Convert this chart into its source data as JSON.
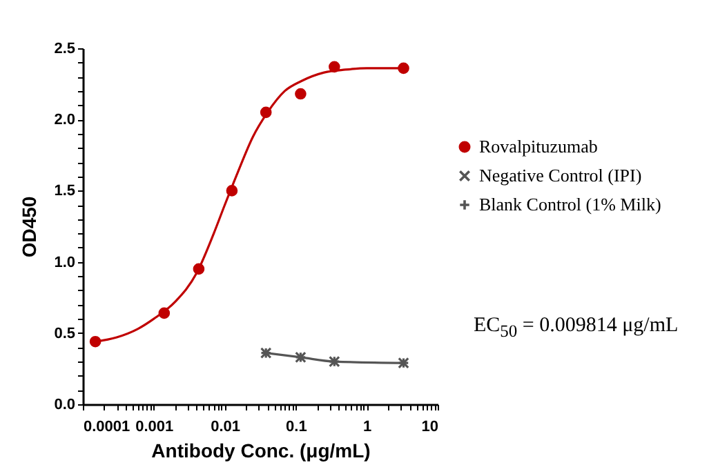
{
  "chart_data": {
    "type": "scatter",
    "xlabel": "Antibody Conc. (μg/mL)",
    "ylabel": "OD450",
    "log": "x",
    "legend": "right",
    "grid": false,
    "xlim": [
      0.0001,
      10
    ],
    "ylim": [
      0,
      2.5
    ],
    "xticks": [
      0.0001,
      {
        "value": 0.0002,
        "label": null
      },
      {
        "value": 0.0003,
        "label": null
      },
      {
        "value": 0.0004,
        "label": null
      },
      {
        "value": 0.0005,
        "label": null
      },
      {
        "value": 0.0006,
        "label": null
      },
      {
        "value": 0.0007,
        "label": null
      },
      {
        "value": 0.0008,
        "label": null
      },
      {
        "value": 0.0009,
        "label": null
      },
      0.001,
      {
        "value": 0.002,
        "label": null
      },
      {
        "value": 0.003,
        "label": null
      },
      {
        "value": 0.004,
        "label": null
      },
      {
        "value": 0.005,
        "label": null
      },
      {
        "value": 0.006,
        "label": null
      },
      {
        "value": 0.007,
        "label": null
      },
      {
        "value": 0.008,
        "label": null
      },
      {
        "value": 0.009,
        "label": null
      },
      0.01,
      {
        "value": 0.02,
        "label": null
      },
      {
        "value": 0.03,
        "label": null
      },
      {
        "value": 0.04,
        "label": null
      },
      {
        "value": 0.05,
        "label": null
      },
      {
        "value": 0.06,
        "label": null
      },
      {
        "value": 0.07,
        "label": null
      },
      {
        "value": 0.08,
        "label": null
      },
      {
        "value": 0.09,
        "label": null
      },
      0.1,
      {
        "value": 0.2,
        "label": null
      },
      {
        "value": 0.3,
        "label": null
      },
      {
        "value": 0.4,
        "label": null
      },
      {
        "value": 0.5,
        "label": null
      },
      {
        "value": 0.6,
        "label": null
      },
      {
        "value": 0.7,
        "label": null
      },
      {
        "value": 0.8,
        "label": null
      },
      {
        "value": 0.9,
        "label": null
      },
      1,
      {
        "value": 2,
        "label": null
      },
      {
        "value": 3,
        "label": null
      },
      {
        "value": 4,
        "label": null
      },
      {
        "value": 5,
        "label": null
      },
      {
        "value": 6,
        "label": null
      },
      {
        "value": 7,
        "label": null
      },
      {
        "value": 8,
        "label": null
      },
      {
        "value": 9,
        "label": null
      },
      10
    ],
    "yticks": [
      {
        "value": 0,
        "label": "0.0"
      },
      {
        "value": 0.1,
        "label": null
      },
      {
        "value": 0.2,
        "label": null
      },
      {
        "value": 0.3,
        "label": null
      },
      {
        "value": 0.4,
        "label": null
      },
      0.5,
      {
        "value": 0.6,
        "label": null
      },
      {
        "value": 0.7,
        "label": null
      },
      {
        "value": 0.8,
        "label": null
      },
      {
        "value": 0.9,
        "label": null
      },
      {
        "value": 1,
        "label": "1.0"
      },
      {
        "value": 1.1,
        "label": null
      },
      {
        "value": 1.2,
        "label": null
      },
      {
        "value": 1.3,
        "label": null
      },
      {
        "value": 1.4,
        "label": null
      },
      1.5,
      {
        "value": 1.6,
        "label": null
      },
      {
        "value": 1.7,
        "label": null
      },
      {
        "value": 1.8,
        "label": null
      },
      {
        "value": 1.9,
        "label": null
      },
      {
        "value": 2,
        "label": "2.0"
      },
      {
        "value": 2.1,
        "label": null
      },
      {
        "value": 2.2,
        "label": null
      },
      {
        "value": 2.3,
        "label": null
      },
      {
        "value": 2.4,
        "label": null
      },
      2.5
    ],
    "series": [
      {
        "name": "Rovalpituzumab",
        "type": "scatter",
        "marker": "circle",
        "color": "#c00000",
        "x": [
          0.00015,
          0.0014,
          0.0043,
          0.0126,
          0.038,
          0.117,
          0.35,
          3.3
        ],
        "values": [
          0.44,
          0.64,
          0.95,
          1.5,
          2.05,
          2.18,
          2.37,
          2.36
        ]
      },
      {
        "type": "line",
        "marker": "none",
        "color": "#c00000",
        "x": [
          0.00015,
          0.0003,
          0.0006,
          0.001,
          0.002,
          0.004,
          0.007,
          0.01,
          0.015,
          0.025,
          0.04,
          0.07,
          0.12,
          0.25,
          0.5,
          1,
          3.3
        ],
        "values": [
          0.44,
          0.47,
          0.53,
          0.6,
          0.72,
          0.92,
          1.2,
          1.4,
          1.62,
          1.88,
          2.05,
          2.2,
          2.27,
          2.33,
          2.35,
          2.36,
          2.36
        ]
      },
      {
        "name": "Negative Control (IPI)",
        "type": "scatter",
        "marker": "cross",
        "color": "#555555",
        "x": [
          0.038,
          0.117,
          0.35,
          3.3
        ],
        "values": [
          0.36,
          0.33,
          0.3,
          0.29
        ]
      },
      {
        "name": "Blank Control (1% Milk)",
        "type": "line",
        "marker": "cross",
        "color": "#555555",
        "x": [
          0.038,
          0.117,
          0.35,
          3.3
        ],
        "values": [
          0.36,
          0.33,
          0.3,
          0.29
        ]
      }
    ],
    "annotations": [
      "EC$_{50}$ = 0.009814 μg/mL"
    ]
  }
}
